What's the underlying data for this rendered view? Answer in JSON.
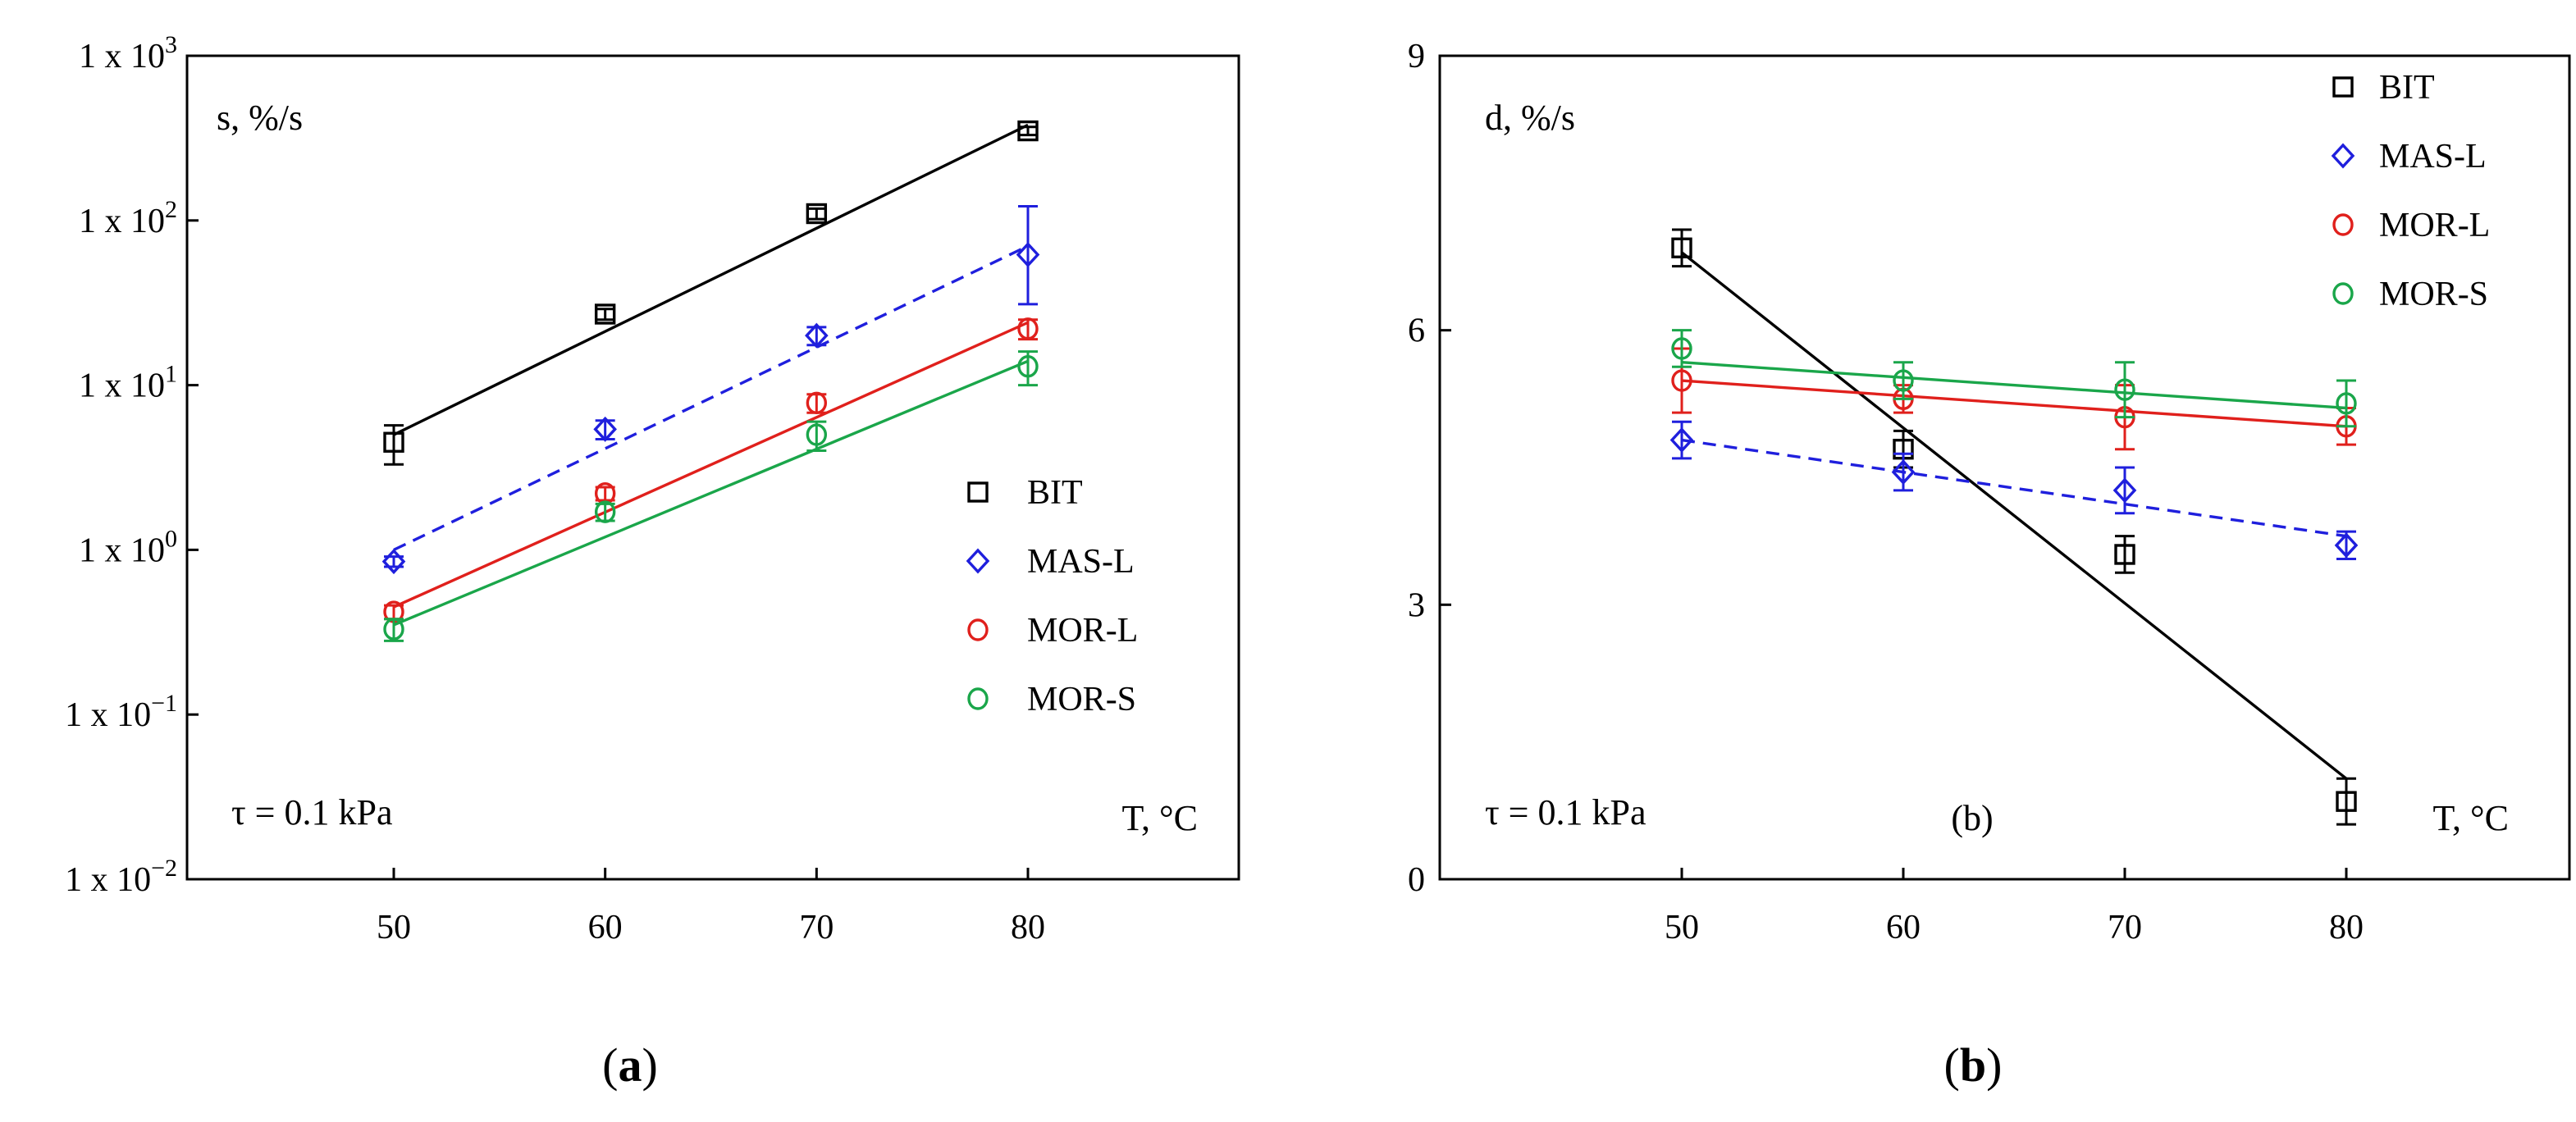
{
  "chart_data": [
    {
      "type": "scatter",
      "panel": "a",
      "caption_letter": "a",
      "inner_label": "s, %/s",
      "annotation": "τ = 0.1 kPa",
      "xaxis_label": "T, °C",
      "x_ticks": [
        50,
        60,
        70,
        80
      ],
      "x_range": [
        40,
        90
      ],
      "y_scale": "log",
      "y_range": [
        0.01,
        1000
      ],
      "y_ticks": [
        {
          "value": 1000,
          "base": "1 x 10",
          "exp": "3"
        },
        {
          "value": 100,
          "base": "1 x 10",
          "exp": "2"
        },
        {
          "value": 10,
          "base": "1 x 10",
          "exp": "1"
        },
        {
          "value": 1,
          "base": "1 x 10",
          "exp": "0"
        },
        {
          "value": 0.1,
          "base": "1 x 10",
          "exp": "−1"
        },
        {
          "value": 0.01,
          "base": "1 x 10",
          "exp": "−2"
        }
      ],
      "legend_position": "center-right",
      "series": [
        {
          "name": "BIT",
          "marker": "square",
          "color": "#000000",
          "dash": "solid",
          "x": [
            50,
            60,
            70,
            80
          ],
          "y": [
            4.5,
            27,
            110,
            350
          ],
          "err": [
            1.2,
            2,
            8,
            20
          ],
          "fit": {
            "x": [
              50,
              80
            ],
            "y": [
              5.0,
              380
            ]
          }
        },
        {
          "name": "MAS-L",
          "marker": "diamond",
          "color": "#1f1fdd",
          "dash": "dashed",
          "x": [
            50,
            60,
            70,
            80
          ],
          "y": [
            0.85,
            5.4,
            20,
            62
          ],
          "err": [
            0.06,
            0.7,
            2.5,
            60
          ],
          "fit": {
            "x": [
              50,
              80
            ],
            "y": [
              1.0,
              70
            ]
          }
        },
        {
          "name": "MOR-L",
          "marker": "circle",
          "color": "#e0201c",
          "dash": "solid",
          "x": [
            50,
            60,
            70,
            80
          ],
          "y": [
            0.42,
            2.2,
            7.8,
            22
          ],
          "err": [
            0.04,
            0.2,
            1.0,
            3
          ],
          "fit": {
            "x": [
              50,
              80
            ],
            "y": [
              0.45,
              24
            ]
          }
        },
        {
          "name": "MOR-S",
          "marker": "circle",
          "color": "#1aa64a",
          "dash": "solid",
          "x": [
            50,
            60,
            70,
            80
          ],
          "y": [
            0.33,
            1.7,
            5.0,
            13
          ],
          "err": [
            0.05,
            0.2,
            1.0,
            3
          ],
          "fit": {
            "x": [
              50,
              80
            ],
            "y": [
              0.35,
              14
            ]
          }
        }
      ]
    },
    {
      "type": "scatter",
      "panel": "b",
      "caption_letter": "b",
      "inner_label": "d, %/s",
      "annotation": "τ = 0.1 kPa",
      "panel_tag": "(b)",
      "xaxis_label": "T, °C",
      "x_ticks": [
        50,
        60,
        70,
        80
      ],
      "x_range": [
        40,
        90
      ],
      "y_scale": "linear",
      "y_range": [
        0,
        9
      ],
      "y_ticks": [
        {
          "value": 0,
          "label": "0"
        },
        {
          "value": 3,
          "label": "3"
        },
        {
          "value": 6,
          "label": "6"
        },
        {
          "value": 9,
          "label": "9"
        }
      ],
      "legend_position": "top-right",
      "series": [
        {
          "name": "BIT",
          "marker": "square",
          "color": "#000000",
          "dash": "solid",
          "x": [
            50,
            60,
            70,
            80
          ],
          "y": [
            6.9,
            4.7,
            3.55,
            0.85
          ],
          "err": [
            0.2,
            0.2,
            0.2,
            0.25
          ],
          "fit": {
            "x": [
              50,
              80
            ],
            "y": [
              6.85,
              1.1
            ]
          }
        },
        {
          "name": "MAS-L",
          "marker": "diamond",
          "color": "#1f1fdd",
          "dash": "dashed",
          "x": [
            50,
            60,
            70,
            80
          ],
          "y": [
            4.8,
            4.45,
            4.25,
            3.65
          ],
          "err": [
            0.2,
            0.2,
            0.25,
            0.15
          ],
          "fit": {
            "x": [
              50,
              80
            ],
            "y": [
              4.8,
              3.75
            ]
          }
        },
        {
          "name": "MOR-L",
          "marker": "circle",
          "color": "#e0201c",
          "dash": "solid",
          "x": [
            50,
            60,
            70,
            80
          ],
          "y": [
            5.45,
            5.25,
            5.05,
            4.95
          ],
          "err": [
            0.35,
            0.15,
            0.35,
            0.2
          ],
          "fit": {
            "x": [
              50,
              80
            ],
            "y": [
              5.45,
              4.95
            ]
          }
        },
        {
          "name": "MOR-S",
          "marker": "circle",
          "color": "#1aa64a",
          "dash": "solid",
          "x": [
            50,
            60,
            70,
            80
          ],
          "y": [
            5.8,
            5.45,
            5.35,
            5.2
          ],
          "err": [
            0.2,
            0.2,
            0.3,
            0.25
          ],
          "fit": {
            "x": [
              50,
              80
            ],
            "y": [
              5.65,
              5.15
            ]
          }
        }
      ]
    }
  ]
}
